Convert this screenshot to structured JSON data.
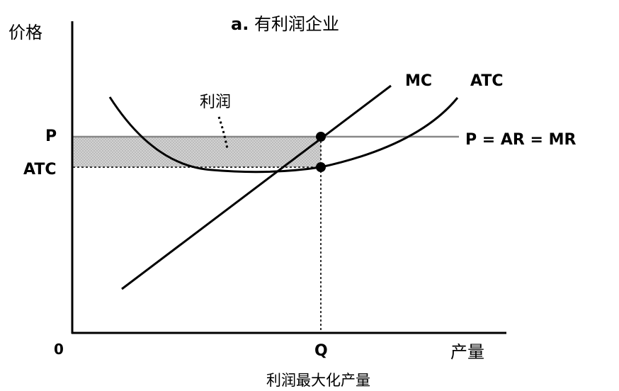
{
  "chart_data": {
    "type": "line",
    "title_prefix": "a.",
    "title": "有利润企业",
    "ylabel": "价格",
    "xlabel": "产量",
    "subtitle": "利润最大化产量",
    "x_ticks": {
      "origin": "0",
      "q": "Q"
    },
    "y_ticks": {
      "p": "P",
      "atc": "ATC"
    },
    "series": [
      {
        "name": "MC",
        "color": "#000000"
      },
      {
        "name": "ATC",
        "color": "#000000"
      },
      {
        "name": "P = AR = MR",
        "color": "#888888"
      }
    ],
    "profit_region": {
      "label": "利润",
      "fill": "#c8c8c8"
    }
  }
}
